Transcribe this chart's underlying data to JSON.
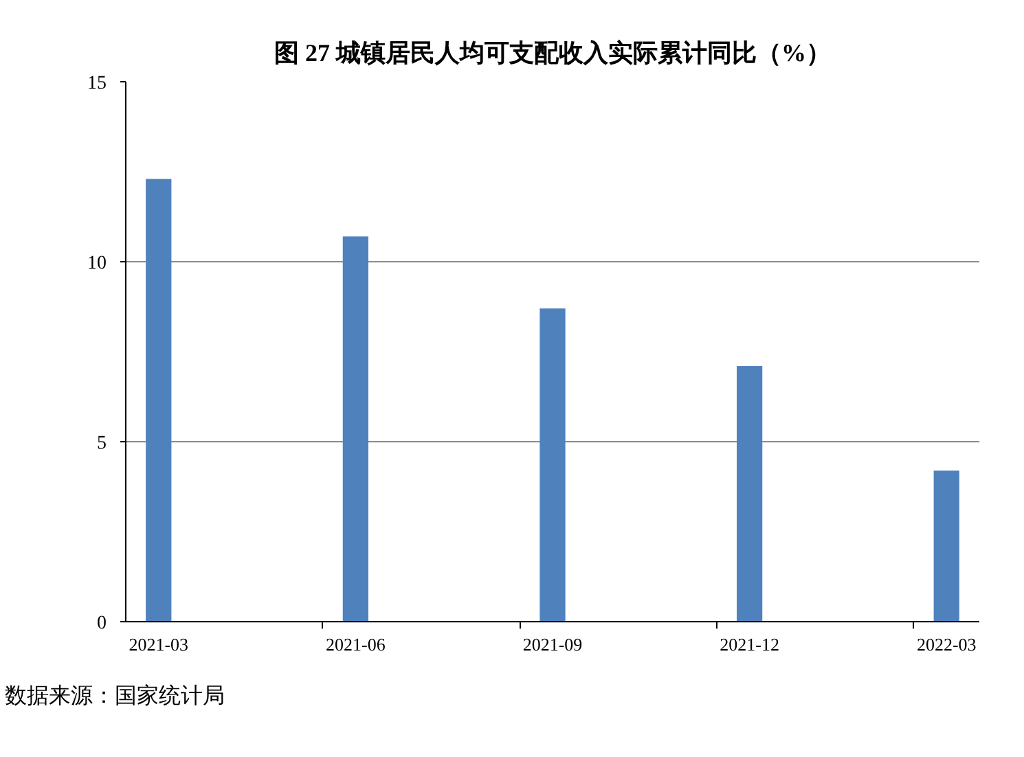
{
  "chart_data": {
    "type": "bar",
    "title": "图 27 城镇居民人均可支配收入实际累计同比（%）",
    "categories": [
      "2021-03",
      null,
      null,
      "2021-06",
      null,
      null,
      "2021-09",
      null,
      null,
      "2021-12",
      null,
      null,
      "2022-03"
    ],
    "values": [
      12.3,
      null,
      null,
      10.7,
      null,
      null,
      8.7,
      null,
      null,
      7.1,
      null,
      null,
      4.2
    ],
    "color": "#4f81bd",
    "ylim": [
      0,
      15
    ],
    "yticks": [
      0,
      5,
      10,
      15
    ],
    "grid": "y",
    "annotations": [
      "数据来源：国家统计局"
    ]
  }
}
